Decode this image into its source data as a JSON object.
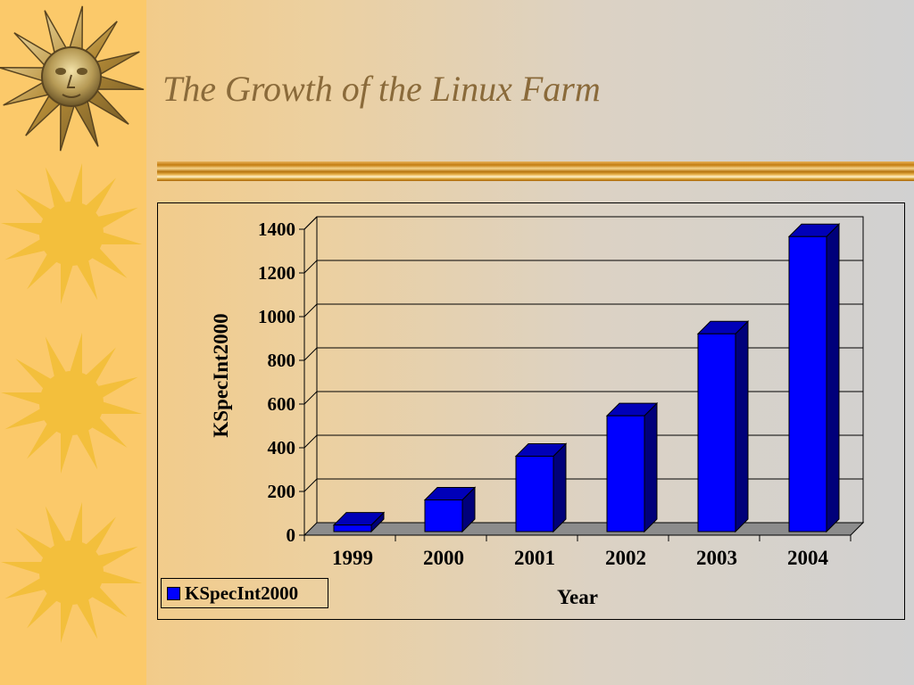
{
  "slide": {
    "title": "The Growth of the Linux Farm"
  },
  "chart_data": {
    "type": "bar",
    "categories": [
      "1999",
      "2000",
      "2001",
      "2002",
      "2003",
      "2004"
    ],
    "series": [
      {
        "name": "KSpecInt2000",
        "values": [
          30,
          145,
          345,
          530,
          905,
          1350
        ],
        "color": "#0000ff"
      }
    ],
    "xlabel": "Year",
    "ylabel": "KSpecInt2000",
    "ylim": [
      0,
      1400
    ],
    "yticks": [
      "0",
      "200",
      "400",
      "600",
      "800",
      "1000",
      "1200",
      "1400"
    ],
    "grid": true,
    "legend": "bottom-left",
    "style": "3d-column"
  }
}
